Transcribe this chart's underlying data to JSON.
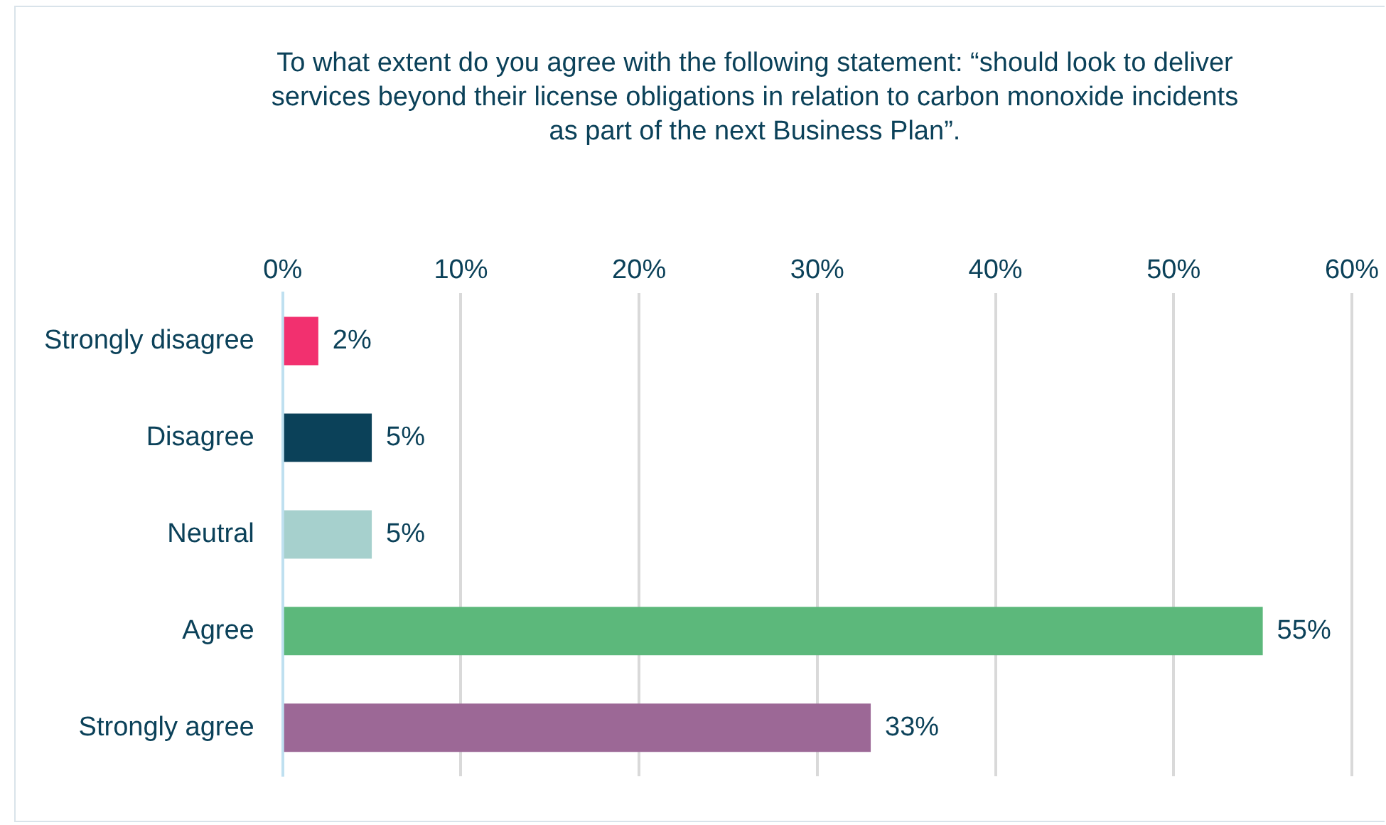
{
  "chart_data": {
    "type": "bar",
    "orientation": "horizontal",
    "title": "To what extent do you agree with the following statement: “should look to deliver services beyond their license obligations in relation to carbon monoxide incidents as part of the next Business Plan”.",
    "categories": [
      "Strongly disagree",
      "Disagree",
      "Neutral",
      "Agree",
      "Strongly agree"
    ],
    "values": [
      2,
      5,
      5,
      55,
      33
    ],
    "colors": [
      "#f2306f",
      "#0b4159",
      "#a6d0cd",
      "#5cb87b",
      "#9c6896"
    ],
    "value_labels": [
      "2%",
      "5%",
      "5%",
      "55%",
      "33%"
    ],
    "xlim": [
      0,
      60
    ],
    "xticks": [
      {
        "value": 0,
        "label": "0%"
      },
      {
        "value": 10,
        "label": "10%"
      },
      {
        "value": 20,
        "label": "20%"
      },
      {
        "value": 30,
        "label": "30%"
      },
      {
        "value": 40,
        "label": "40%"
      },
      {
        "value": 50,
        "label": "50%"
      },
      {
        "value": 60,
        "label": "60%"
      }
    ],
    "grid": "x",
    "legend": false
  }
}
